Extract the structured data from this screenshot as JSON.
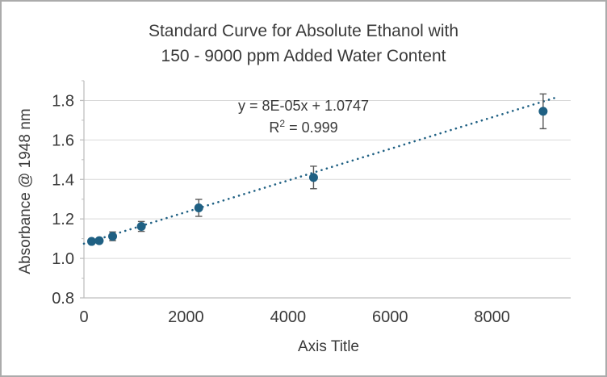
{
  "window": {
    "background": "#FFFFFF",
    "border_color": "#ABABAB"
  },
  "chart": {
    "title_line1": "Standard Curve for Absolute Ethanol with",
    "title_line2": "150 - 9000 ppm Added Water Content",
    "equation": "y = 8E-05x + 1.0747",
    "r2_base": "R",
    "r2_exponent": "2",
    "r2_rest": " = 0.999"
  },
  "chart_data": {
    "type": "scatter",
    "title": "Standard Curve for Absolute Ethanol with 150 - 9000 ppm Added Water Content",
    "xlabel": "Axis Title",
    "ylabel": "Absorbance @ 1948 nm",
    "xlim": [
      0,
      9540
    ],
    "ylim": [
      0.8,
      1.9
    ],
    "x_ticks": [
      0,
      2000,
      4000,
      6000,
      8000
    ],
    "y_ticks": [
      0.8,
      1.0,
      1.2,
      1.4,
      1.6,
      1.8
    ],
    "y_minor_ticks": [
      0.9,
      1.1,
      1.3,
      1.5,
      1.7,
      1.9
    ],
    "grid": "horizontal",
    "legend": "none",
    "points": [
      {
        "x": 150,
        "y": 1.086,
        "y_err": 0.01
      },
      {
        "x": 300,
        "y": 1.09,
        "y_err": 0.01
      },
      {
        "x": 562,
        "y": 1.112,
        "y_err": 0.022
      },
      {
        "x": 1125,
        "y": 1.162,
        "y_err": 0.025
      },
      {
        "x": 2250,
        "y": 1.256,
        "y_err": 0.043
      },
      {
        "x": 4500,
        "y": 1.41,
        "y_err": 0.057
      },
      {
        "x": 9000,
        "y": 1.745,
        "y_err": 0.088
      }
    ],
    "trendline": {
      "type": "linear",
      "slope": 8e-05,
      "intercept": 1.0747,
      "r_squared": 0.999,
      "x_start": 0,
      "x_end": 9220,
      "style": "dotted"
    },
    "colors": {
      "marker": "#1F6083",
      "trendline": "#1F6083",
      "error_bar": "#595959",
      "gridline": "#D9D9D9",
      "axis_line": "#BFBFBF",
      "text": "#3A3A3A"
    }
  }
}
